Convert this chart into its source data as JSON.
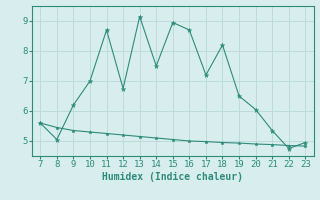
{
  "x": [
    7,
    8,
    9,
    10,
    11,
    12,
    13,
    14,
    15,
    16,
    17,
    18,
    19,
    20,
    21,
    22,
    23
  ],
  "y_upper": [
    5.6,
    5.05,
    6.2,
    7.0,
    8.7,
    6.75,
    9.15,
    7.5,
    8.95,
    8.7,
    7.2,
    8.2,
    6.5,
    6.05,
    5.35,
    4.75,
    4.95
  ],
  "y_lower": [
    5.6,
    5.45,
    5.35,
    5.3,
    5.25,
    5.2,
    5.15,
    5.1,
    5.05,
    5.0,
    4.98,
    4.95,
    4.93,
    4.9,
    4.88,
    4.85,
    4.83
  ],
  "line_color": "#2e8b7a",
  "bg_color": "#d8eeee",
  "grid_color": "#b8d8d8",
  "xlabel": "Humidex (Indice chaleur)",
  "ylim": [
    4.5,
    9.5
  ],
  "xlim": [
    6.5,
    23.5
  ],
  "yticks": [
    5,
    6,
    7,
    8,
    9
  ],
  "xticks": [
    7,
    8,
    9,
    10,
    11,
    12,
    13,
    14,
    15,
    16,
    17,
    18,
    19,
    20,
    21,
    22,
    23
  ]
}
